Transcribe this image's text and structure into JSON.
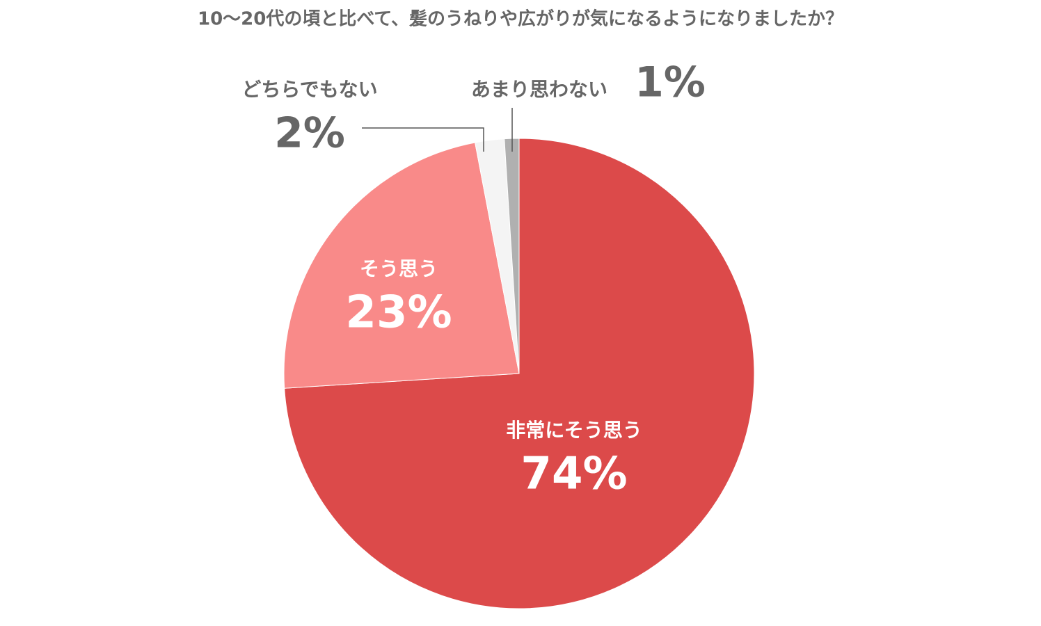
{
  "chart_data": {
    "type": "pie",
    "title": "10〜20代の頃と比べて、髪のうねりや広がりが気になるようになりましたか？",
    "categories": [
      "非常にそう思う",
      "そう思う",
      "どちらでもない",
      "あまり思わない"
    ],
    "values": [
      74,
      23,
      2,
      1
    ],
    "value_labels": [
      "74%",
      "23%",
      "2%",
      "1%"
    ],
    "colors": [
      "#dc4a4a",
      "#f98a89",
      "#f4f4f4",
      "#b0b0b0"
    ]
  }
}
